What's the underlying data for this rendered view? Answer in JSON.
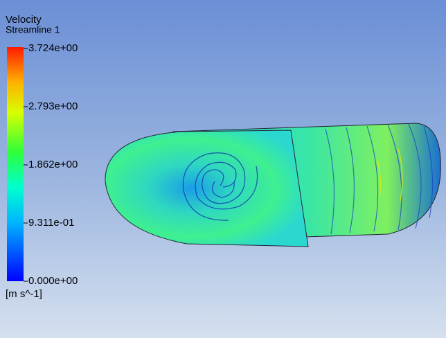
{
  "legend": {
    "title": "Velocity",
    "subtitle": "Streamline 1",
    "labels": [
      "3.724e+00",
      "2.793e+00",
      "1.862e+00",
      "9.311e-01",
      "0.000e+00"
    ],
    "unit": "[m s^-1]"
  }
}
